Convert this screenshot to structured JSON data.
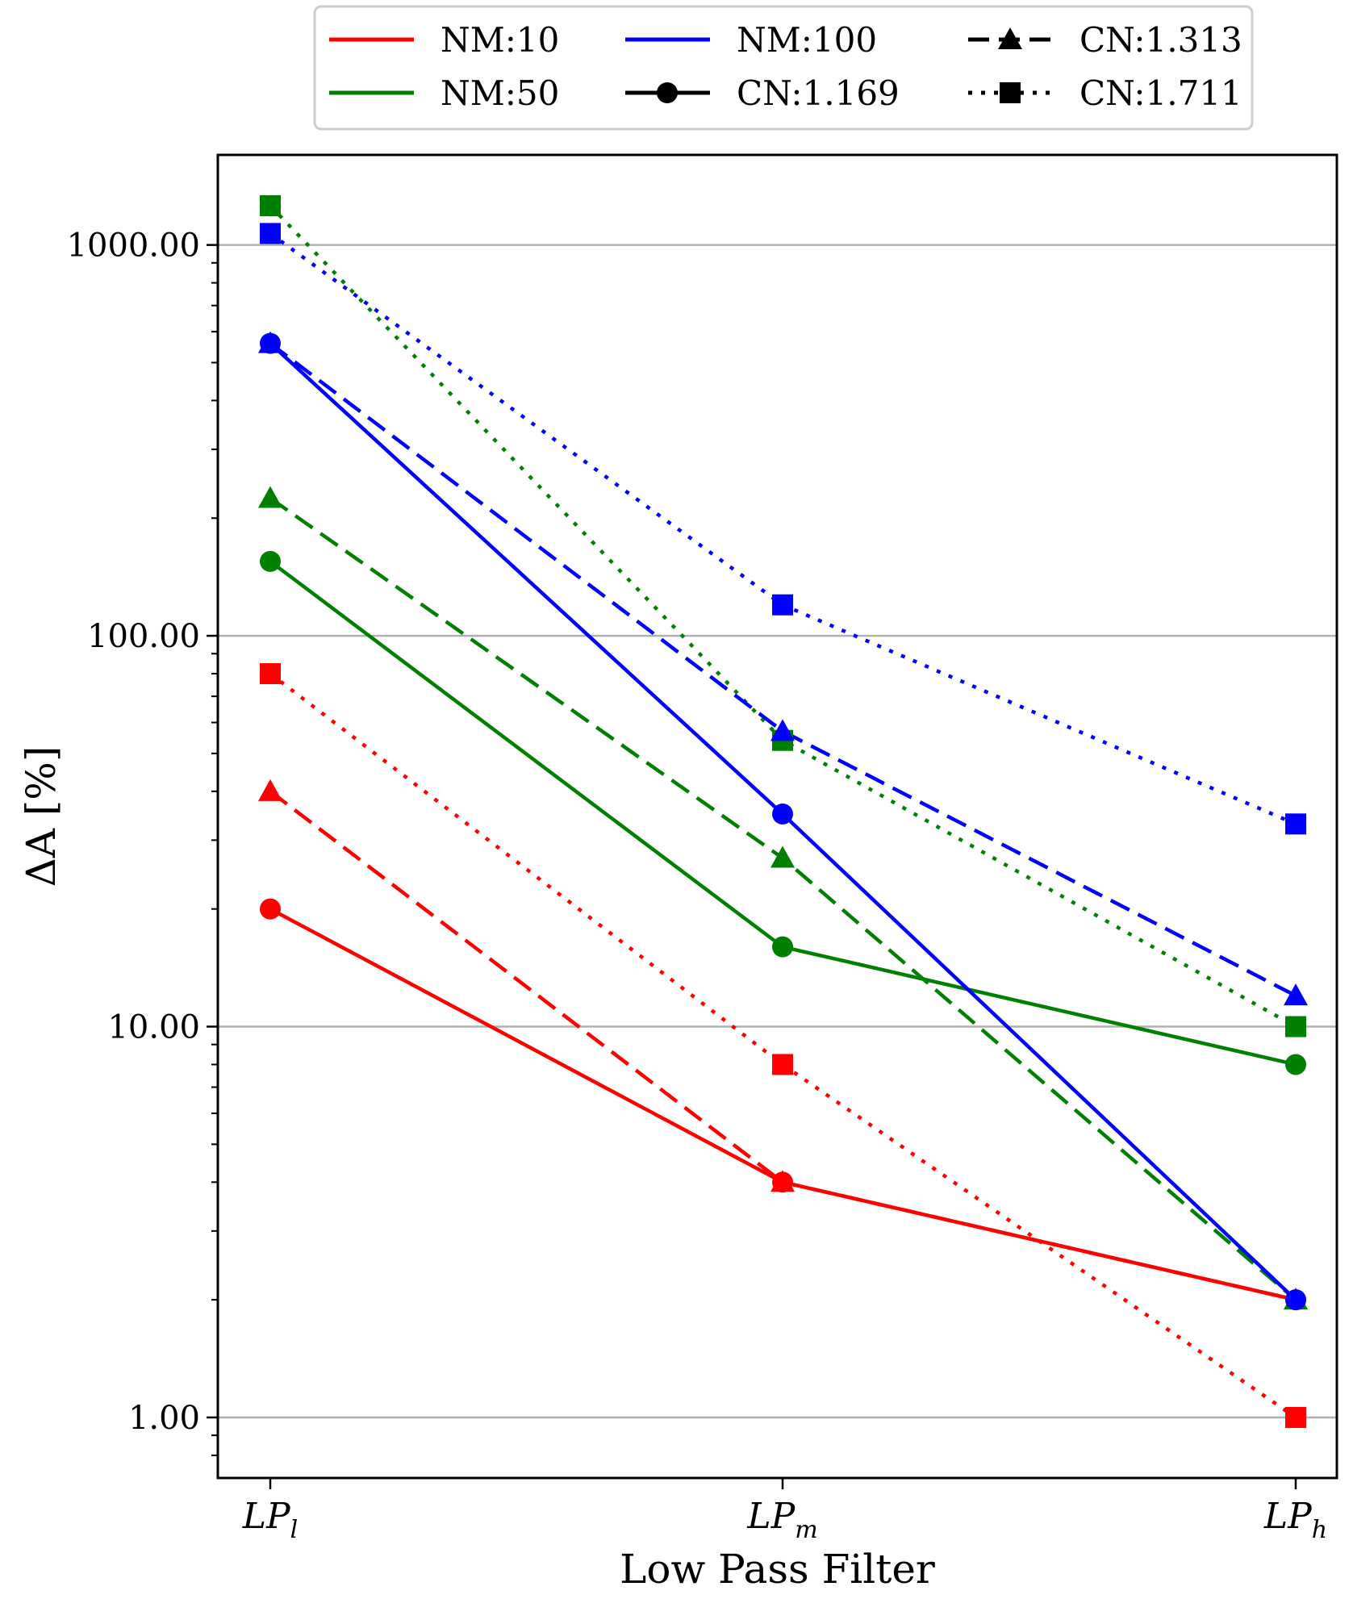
{
  "chart_data": {
    "type": "line",
    "xlabel": "Low Pass Filter",
    "ylabel": "ΔA [%]",
    "yscale": "log",
    "ylim": [
      0.7,
      1700
    ],
    "yticks": [
      "1.00",
      "10.00",
      "100.00",
      "1000.00"
    ],
    "grid": "horizontal",
    "legend_position": "top-center",
    "categories": [
      {
        "main": "LP",
        "sub": "l"
      },
      {
        "main": "LP",
        "sub": "m"
      },
      {
        "main": "LP",
        "sub": "h"
      }
    ],
    "colors": {
      "NM:10": "#ff0000",
      "NM:50": "#008000",
      "NM:100": "#0000ff"
    },
    "legend": [
      {
        "label": "NM:10",
        "color": "#ff0000",
        "style": "solid",
        "marker": "none"
      },
      {
        "label": "NM:50",
        "color": "#008000",
        "style": "solid",
        "marker": "none"
      },
      {
        "label": "NM:100",
        "color": "#0000ff",
        "style": "solid",
        "marker": "none"
      },
      {
        "label": "CN:1.169",
        "color": "#000000",
        "style": "solid",
        "marker": "circle"
      },
      {
        "label": "CN:1.313",
        "color": "#000000",
        "style": "dashed",
        "marker": "triangle"
      },
      {
        "label": "CN:1.711",
        "color": "#000000",
        "style": "dotted",
        "marker": "square"
      }
    ],
    "series": [
      {
        "nm": "NM:10",
        "cn": "CN:1.169",
        "values": [
          20,
          4,
          2
        ]
      },
      {
        "nm": "NM:10",
        "cn": "CN:1.313",
        "values": [
          40,
          4,
          2
        ]
      },
      {
        "nm": "NM:10",
        "cn": "CN:1.711",
        "values": [
          80,
          8,
          1
        ]
      },
      {
        "nm": "NM:50",
        "cn": "CN:1.169",
        "values": [
          155,
          16,
          8
        ]
      },
      {
        "nm": "NM:50",
        "cn": "CN:1.313",
        "values": [
          225,
          27,
          2
        ]
      },
      {
        "nm": "NM:50",
        "cn": "CN:1.711",
        "values": [
          1260,
          54,
          10
        ]
      },
      {
        "nm": "NM:100",
        "cn": "CN:1.169",
        "values": [
          560,
          35,
          2
        ]
      },
      {
        "nm": "NM:100",
        "cn": "CN:1.313",
        "values": [
          560,
          57,
          12
        ]
      },
      {
        "nm": "NM:100",
        "cn": "CN:1.711",
        "values": [
          1070,
          120,
          33
        ]
      }
    ]
  }
}
